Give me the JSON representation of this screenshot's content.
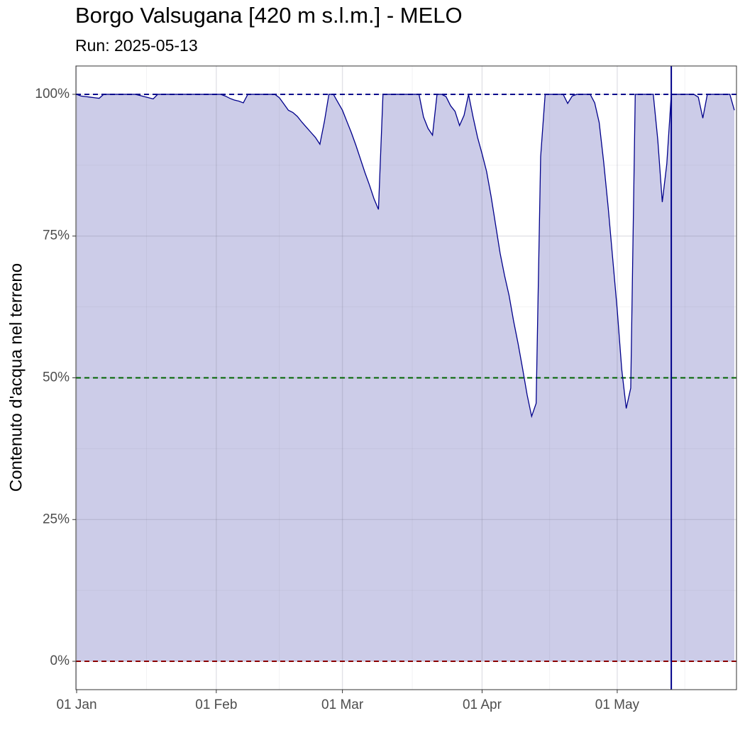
{
  "chart_data": {
    "type": "area",
    "title": "Borgo Valsugana [420 m s.l.m.] - MELO",
    "subtitle": "Run: 2025-05-13",
    "ylabel": "Contenuto d'acqua nel terreno",
    "x": [
      "01 Jan",
      "02 Jan",
      "03 Jan",
      "04 Jan",
      "05 Jan",
      "06 Jan",
      "07 Jan",
      "08 Jan",
      "09 Jan",
      "10 Jan",
      "11 Jan",
      "12 Jan",
      "13 Jan",
      "14 Jan",
      "15 Jan",
      "16 Jan",
      "17 Jan",
      "18 Jan",
      "19 Jan",
      "20 Jan",
      "21 Jan",
      "22 Jan",
      "23 Jan",
      "24 Jan",
      "25 Jan",
      "26 Jan",
      "27 Jan",
      "28 Jan",
      "29 Jan",
      "30 Jan",
      "31 Jan",
      "01 Feb",
      "02 Feb",
      "03 Feb",
      "04 Feb",
      "05 Feb",
      "06 Feb",
      "07 Feb",
      "08 Feb",
      "09 Feb",
      "10 Feb",
      "11 Feb",
      "12 Feb",
      "13 Feb",
      "14 Feb",
      "15 Feb",
      "16 Feb",
      "17 Feb",
      "18 Feb",
      "19 Feb",
      "20 Feb",
      "21 Feb",
      "22 Feb",
      "23 Feb",
      "24 Feb",
      "25 Feb",
      "26 Feb",
      "27 Feb",
      "28 Feb",
      "01 Mar",
      "02 Mar",
      "03 Mar",
      "04 Mar",
      "05 Mar",
      "06 Mar",
      "07 Mar",
      "08 Mar",
      "09 Mar",
      "10 Mar",
      "11 Mar",
      "12 Mar",
      "13 Mar",
      "14 Mar",
      "15 Mar",
      "16 Mar",
      "17 Mar",
      "18 Mar",
      "19 Mar",
      "20 Mar",
      "21 Mar",
      "22 Mar",
      "23 Mar",
      "24 Mar",
      "25 Mar",
      "26 Mar",
      "27 Mar",
      "28 Mar",
      "29 Mar",
      "30 Mar",
      "31 Mar",
      "01 Apr",
      "02 Apr",
      "03 Apr",
      "04 Apr",
      "05 Apr",
      "06 Apr",
      "07 Apr",
      "08 Apr",
      "09 Apr",
      "10 Apr",
      "11 Apr",
      "12 Apr",
      "13 Apr",
      "14 Apr",
      "15 Apr",
      "16 Apr",
      "17 Apr",
      "18 Apr",
      "19 Apr",
      "20 Apr",
      "21 Apr",
      "22 Apr",
      "23 Apr",
      "24 Apr",
      "25 Apr",
      "26 Apr",
      "27 Apr",
      "28 Apr",
      "29 Apr",
      "30 Apr",
      "01 May",
      "02 May",
      "03 May",
      "04 May",
      "05 May",
      "06 May",
      "07 May",
      "08 May",
      "09 May",
      "10 May",
      "11 May",
      "12 May",
      "13 May",
      "14 May",
      "15 May",
      "16 May",
      "17 May",
      "18 May",
      "19 May",
      "20 May",
      "21 May",
      "22 May",
      "23 May",
      "24 May",
      "25 May",
      "26 May",
      "27 May"
    ],
    "values": [
      100,
      99.7,
      99.6,
      99.5,
      99.4,
      99.3,
      100,
      100,
      100,
      100,
      100,
      100,
      100,
      100,
      99.8,
      99.6,
      99.4,
      99.2,
      100,
      100,
      100,
      100,
      100,
      100,
      100,
      100,
      100,
      100,
      100,
      100,
      100,
      100,
      100,
      99.7,
      99.3,
      99,
      98.8,
      98.5,
      100,
      100,
      100,
      100,
      100,
      100,
      100,
      99.4,
      98.3,
      97.2,
      96.8,
      96.1,
      95.1,
      94.2,
      93.3,
      92.4,
      91.2,
      95.2,
      100,
      100,
      98.6,
      97.2,
      95.2,
      93.2,
      91,
      88.6,
      86.2,
      84,
      81.6,
      79.7,
      100,
      100,
      100,
      100,
      100,
      100,
      100,
      100,
      100,
      96,
      94,
      92.8,
      100,
      100,
      99.6,
      98,
      97,
      94.5,
      96.3,
      100,
      96,
      92.4,
      89.5,
      86.4,
      82,
      77,
      72,
      68,
      64.5,
      60,
      56,
      51.6,
      47,
      43.2,
      45.5,
      89,
      100,
      100,
      100,
      100,
      100,
      98.4,
      99.7,
      100,
      100,
      100,
      100,
      98.5,
      95,
      88,
      80,
      71,
      62,
      51.5,
      44.6,
      48.2,
      100,
      100,
      100,
      100,
      100,
      92,
      81,
      87.7,
      100,
      100,
      100,
      100,
      100,
      100,
      99.5,
      95.8,
      100,
      100,
      100,
      100,
      100,
      100,
      97.2
    ],
    "line_color": "#00008b",
    "fill_color": "#cccce8",
    "ylim": [
      -5,
      105
    ],
    "yticks": [
      {
        "value": 0,
        "label": "0%"
      },
      {
        "value": 25,
        "label": "25%"
      },
      {
        "value": 50,
        "label": "50%"
      },
      {
        "value": 75,
        "label": "75%"
      },
      {
        "value": 100,
        "label": "100%"
      }
    ],
    "xticks": [
      "01 Jan",
      "01 Feb",
      "01 Mar",
      "01 Apr",
      "01 May"
    ],
    "hlines": [
      {
        "value": 100,
        "color": "#00008b"
      },
      {
        "value": 50,
        "color": "#006400"
      },
      {
        "value": 0,
        "color": "#8b0000"
      }
    ],
    "vline": {
      "x": "13 May",
      "color": "#00008b"
    },
    "grid": true
  }
}
